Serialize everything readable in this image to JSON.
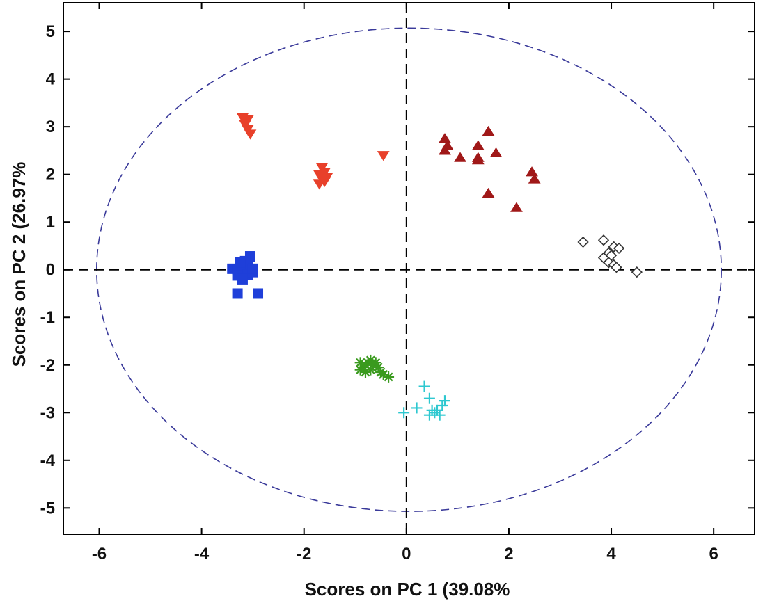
{
  "chart_data": {
    "type": "scatter",
    "title": "",
    "xlabel": "Scores on PC 1 (39.08%",
    "ylabel": "Scores on PC 2 (26.97%",
    "xlim": [
      -6.7,
      6.8
    ],
    "ylim": [
      -5.55,
      5.6
    ],
    "xticks": [
      -6,
      -4,
      -2,
      0,
      2,
      4,
      6
    ],
    "yticks": [
      5,
      4,
      3,
      2,
      1,
      0,
      -1,
      -2,
      -3,
      -4,
      -5
    ],
    "grid": false,
    "legend": "none",
    "reference_lines": {
      "x": 0,
      "y": 0,
      "style": "dashed",
      "color": "#000000"
    },
    "confidence_ellipse": {
      "cx": 0.05,
      "cy": 0.0,
      "rx": 6.1,
      "ry": 5.07,
      "style": "dashed",
      "color": "#3a3a9a"
    },
    "series": [
      {
        "marker": "triangle-down",
        "color": "#e8402a",
        "filled": true,
        "points": [
          [
            -3.2,
            3.2
          ],
          [
            -3.1,
            3.15
          ],
          [
            -3.15,
            3.05
          ],
          [
            -3.1,
            2.95
          ],
          [
            -3.05,
            2.85
          ],
          [
            -1.65,
            2.15
          ],
          [
            -1.6,
            2.05
          ],
          [
            -1.7,
            2.0
          ],
          [
            -1.55,
            1.95
          ],
          [
            -1.65,
            1.9
          ],
          [
            -1.7,
            1.8
          ],
          [
            -1.6,
            1.85
          ],
          [
            -0.45,
            2.4
          ]
        ]
      },
      {
        "marker": "triangle-up",
        "color": "#a01818",
        "filled": true,
        "points": [
          [
            0.75,
            2.75
          ],
          [
            1.6,
            2.9
          ],
          [
            0.8,
            2.6
          ],
          [
            0.75,
            2.5
          ],
          [
            1.4,
            2.6
          ],
          [
            1.75,
            2.45
          ],
          [
            1.05,
            2.35
          ],
          [
            1.4,
            2.35
          ],
          [
            1.4,
            2.3
          ],
          [
            2.45,
            2.05
          ],
          [
            2.5,
            1.9
          ],
          [
            1.6,
            1.6
          ],
          [
            2.15,
            1.3
          ]
        ]
      },
      {
        "marker": "diamond",
        "color": "#333333",
        "filled": false,
        "points": [
          [
            3.45,
            0.58
          ],
          [
            3.85,
            0.62
          ],
          [
            4.05,
            0.48
          ],
          [
            4.15,
            0.45
          ],
          [
            3.95,
            0.35
          ],
          [
            4.0,
            0.3
          ],
          [
            3.85,
            0.25
          ],
          [
            3.95,
            0.15
          ],
          [
            4.05,
            0.1
          ],
          [
            4.1,
            0.05
          ],
          [
            4.5,
            -0.05
          ]
        ]
      },
      {
        "marker": "square",
        "color": "#1f3fd9",
        "filled": true,
        "points": [
          [
            -3.4,
            0.02
          ],
          [
            -3.3,
            0.0
          ],
          [
            -3.2,
            0.05
          ],
          [
            -3.1,
            0.1
          ],
          [
            -3.05,
            0.28
          ],
          [
            -3.15,
            0.18
          ],
          [
            -3.25,
            -0.05
          ],
          [
            -3.1,
            -0.1
          ],
          [
            -3.0,
            -0.05
          ],
          [
            -3.3,
            -0.12
          ],
          [
            -3.2,
            -0.2
          ],
          [
            -3.0,
            0.02
          ],
          [
            -3.25,
            0.15
          ],
          [
            -3.3,
            -0.5
          ],
          [
            -2.9,
            -0.5
          ]
        ]
      },
      {
        "marker": "asterisk",
        "color": "#3a9a1e",
        "filled": false,
        "points": [
          [
            -0.9,
            -1.95
          ],
          [
            -0.85,
            -2.05
          ],
          [
            -0.8,
            -2.0
          ],
          [
            -0.75,
            -1.95
          ],
          [
            -0.7,
            -2.1
          ],
          [
            -0.65,
            -2.0
          ],
          [
            -0.6,
            -1.95
          ],
          [
            -0.55,
            -2.05
          ],
          [
            -0.5,
            -2.15
          ],
          [
            -0.45,
            -2.2
          ],
          [
            -0.35,
            -2.25
          ],
          [
            -0.8,
            -2.15
          ],
          [
            -0.9,
            -2.1
          ],
          [
            -0.7,
            -1.9
          ]
        ]
      },
      {
        "marker": "plus",
        "color": "#2ec8d0",
        "filled": false,
        "points": [
          [
            0.35,
            -2.45
          ],
          [
            0.45,
            -2.7
          ],
          [
            0.75,
            -2.75
          ],
          [
            0.7,
            -2.85
          ],
          [
            0.2,
            -2.9
          ],
          [
            0.5,
            -2.95
          ],
          [
            0.6,
            -2.95
          ],
          [
            0.45,
            -3.05
          ],
          [
            0.55,
            -3.0
          ],
          [
            0.65,
            -3.05
          ],
          [
            -0.05,
            -3.0
          ]
        ]
      }
    ]
  }
}
